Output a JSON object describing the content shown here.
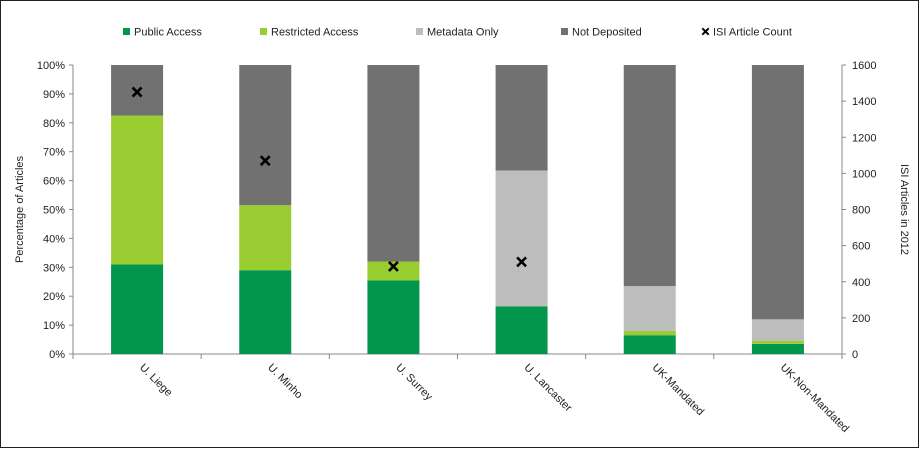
{
  "chart_data": {
    "type": "bar",
    "stacked": true,
    "categories": [
      "U. Liege",
      "U. Minho",
      "U. Surrey",
      "U. Lancaster",
      "UK-Mandated",
      "UK-Non-Mandated"
    ],
    "series": [
      {
        "name": "Public Access",
        "color": "#00964b",
        "values": [
          31,
          29,
          25.5,
          16.5,
          6.5,
          3.5
        ]
      },
      {
        "name": "Restricted Access",
        "color": "#9acd32",
        "values": [
          51.5,
          22.5,
          6.5,
          0,
          1.5,
          1
        ]
      },
      {
        "name": "Metadata Only",
        "color": "#bdbdbd",
        "values": [
          0,
          0,
          0,
          47,
          15.5,
          7.5
        ]
      },
      {
        "name": "Not Deposited",
        "color": "#717171",
        "values": [
          17.5,
          48.5,
          68,
          36.5,
          76.5,
          88
        ]
      }
    ],
    "line_series": {
      "name": "ISI Article Count",
      "marker": "x",
      "values": [
        1450,
        1070,
        485,
        510,
        null,
        null
      ]
    },
    "legend": [
      "Public Access",
      "Restricted Access",
      "Metadata Only",
      "Not Deposited",
      "ISI Article Count"
    ],
    "legend_position": "top",
    "ylabel": "Percentage of Articles",
    "y2label": "ISI Articles in 2012",
    "ylim": [
      0,
      100
    ],
    "y2lim": [
      0,
      1600
    ],
    "yticks": [
      "0%",
      "10%",
      "20%",
      "30%",
      "40%",
      "50%",
      "60%",
      "70%",
      "80%",
      "90%",
      "100%"
    ],
    "y2ticks": [
      "0",
      "200",
      "400",
      "600",
      "800",
      "1000",
      "1200",
      "1400",
      "1600"
    ],
    "grid": false
  }
}
